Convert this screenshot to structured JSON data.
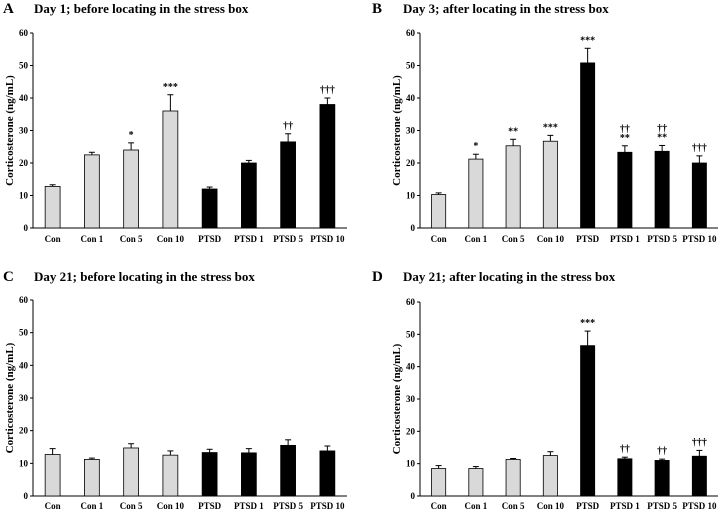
{
  "chart_data": [
    {
      "type": "bar",
      "panel": "A",
      "title": "Day 1; before locating in the stress box",
      "ylabel": "Corticosterone  (ng/mL)",
      "xlabel": "",
      "ylim": [
        0,
        60
      ],
      "yticks": [
        0,
        10,
        20,
        30,
        40,
        50,
        60
      ],
      "categories": [
        "Con",
        "Con 1",
        "Con 5",
        "Con 10",
        "PTSD",
        "PTSD 1",
        "PTSD 5",
        "PTSD 10"
      ],
      "values": [
        12.8,
        22.5,
        24,
        36,
        12,
        20,
        26.5,
        38
      ],
      "errors": [
        0.5,
        0.8,
        2.2,
        5,
        0.6,
        0.8,
        2.5,
        2
      ],
      "colors": [
        "#d9d9d9",
        "#d9d9d9",
        "#d9d9d9",
        "#d9d9d9",
        "#000000",
        "#000000",
        "#000000",
        "#000000"
      ],
      "annotations": [
        [],
        [],
        [
          "*"
        ],
        [
          "***"
        ],
        [],
        [],
        [
          "††"
        ],
        [
          "†††"
        ]
      ]
    },
    {
      "type": "bar",
      "panel": "B",
      "title": "Day 3; after locating in the stress box",
      "ylabel": "Corticosterone  (ng/mL)",
      "xlabel": "",
      "ylim": [
        0,
        60
      ],
      "yticks": [
        0,
        10,
        20,
        30,
        40,
        50,
        60
      ],
      "categories": [
        "Con",
        "Con 1",
        "Con 5",
        "Con 10",
        "PTSD",
        "PTSD 1",
        "PTSD 5",
        "PTSD 10"
      ],
      "values": [
        10.3,
        21.2,
        25.3,
        26.7,
        50.8,
        23.3,
        23.6,
        20
      ],
      "errors": [
        0.5,
        1.5,
        2,
        1.8,
        4.5,
        2,
        1.8,
        2.2
      ],
      "colors": [
        "#d9d9d9",
        "#d9d9d9",
        "#d9d9d9",
        "#d9d9d9",
        "#000000",
        "#000000",
        "#000000",
        "#000000"
      ],
      "annotations": [
        [],
        [
          "*"
        ],
        [
          "**"
        ],
        [
          "***"
        ],
        [
          "***"
        ],
        [
          "††",
          "**"
        ],
        [
          "††",
          "**"
        ],
        [
          "†††"
        ]
      ]
    },
    {
      "type": "bar",
      "panel": "C",
      "title": "Day 21; before locating in the stress box",
      "ylabel": "Corticosterone  (ng/mL)",
      "xlabel": "",
      "ylim": [
        0,
        60
      ],
      "yticks": [
        0,
        10,
        20,
        30,
        40,
        50,
        60
      ],
      "categories": [
        "Con",
        "Con 1",
        "Con 5",
        "Con 10",
        "PTSD",
        "PTSD 1",
        "PTSD 5",
        "PTSD 10"
      ],
      "values": [
        12.7,
        11.2,
        14.7,
        12.5,
        13.3,
        13.2,
        15.5,
        13.8
      ],
      "errors": [
        1.8,
        0.4,
        1.3,
        1.3,
        1,
        1.3,
        1.7,
        1.5
      ],
      "colors": [
        "#d9d9d9",
        "#d9d9d9",
        "#d9d9d9",
        "#d9d9d9",
        "#000000",
        "#000000",
        "#000000",
        "#000000"
      ],
      "annotations": [
        [],
        [],
        [],
        [],
        [],
        [],
        [],
        []
      ]
    },
    {
      "type": "bar",
      "panel": "D",
      "title": "Day 21; after locating in the stress box",
      "ylabel": "Corticosterone  (ng/mL)",
      "xlabel": "",
      "ylim": [
        0,
        60
      ],
      "yticks": [
        0,
        10,
        20,
        30,
        40,
        50,
        60
      ],
      "categories": [
        "Con",
        "Con 1",
        "Con 5",
        "Con 10",
        "PTSD",
        "PTSD 1",
        "PTSD 5",
        "PTSD 10"
      ],
      "values": [
        8.5,
        8.5,
        11.3,
        12.5,
        46.5,
        11.5,
        11,
        12.3
      ],
      "errors": [
        0.9,
        0.6,
        0.3,
        1.2,
        4.5,
        0.5,
        0.4,
        1.8
      ],
      "colors": [
        "#d9d9d9",
        "#d9d9d9",
        "#d9d9d9",
        "#d9d9d9",
        "#000000",
        "#000000",
        "#000000",
        "#000000"
      ],
      "annotations": [
        [],
        [],
        [],
        [],
        [
          "***"
        ],
        [
          "††"
        ],
        [
          "††"
        ],
        [
          "†††"
        ]
      ]
    }
  ]
}
